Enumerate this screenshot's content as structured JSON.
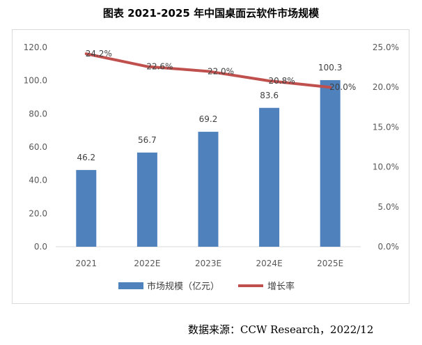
{
  "chart_data": {
    "type": "bar",
    "title": "图表  2021-2025 年中国桌面云软件市场规模",
    "categories": [
      "2021",
      "2022E",
      "2023E",
      "2024E",
      "2025E"
    ],
    "series": [
      {
        "name": "市场规模（亿元）",
        "kind": "bar",
        "axis": "left",
        "color": "#4f81bd",
        "values": [
          46.2,
          56.7,
          69.2,
          83.6,
          100.3
        ],
        "value_labels": [
          "46.2",
          "56.7",
          "69.2",
          "83.6",
          "100.3"
        ]
      },
      {
        "name": "增长率",
        "kind": "line",
        "axis": "right",
        "color": "#c0504d",
        "values": [
          24.2,
          22.6,
          22.0,
          20.8,
          20.0
        ],
        "value_labels": [
          "24.2%",
          "22.6%",
          "22.0%",
          "20.8%",
          "20.0%"
        ]
      }
    ],
    "y_left": {
      "min": 0,
      "max": 120,
      "ticks": [
        "0.0",
        "20.0",
        "40.0",
        "60.0",
        "80.0",
        "100.0",
        "120.0"
      ]
    },
    "y_right": {
      "min": 0,
      "max": 25,
      "ticks": [
        "0.0%",
        "5.0%",
        "10.0%",
        "15.0%",
        "20.0%",
        "25.0%"
      ]
    },
    "grid": false,
    "legend_position": "bottom"
  },
  "source": "数据来源：CCW Research，2022/12"
}
